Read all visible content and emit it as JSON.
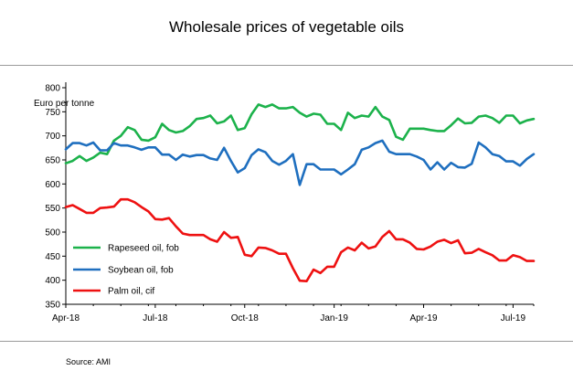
{
  "chart_data": {
    "type": "line",
    "title": "Wholesale prices of vegetable oils",
    "ylabel": "Euro per tonne",
    "xlabel": "",
    "ylim": [
      350,
      800
    ],
    "yticks": [
      350,
      400,
      450,
      500,
      550,
      600,
      650,
      700,
      750,
      800
    ],
    "x_tick_labels": [
      "Apr-18",
      "Jul-18",
      "Oct-18",
      "Jan-19",
      "Apr-19",
      "Jul-19"
    ],
    "grid": false,
    "legend_position": "bottom-left",
    "source": "Source: AMI",
    "series": [
      {
        "name": "Rapeseed oil, fob",
        "color": "#1cb24b",
        "values": [
          643,
          648,
          658,
          648,
          655,
          665,
          662,
          690,
          700,
          718,
          712,
          692,
          690,
          697,
          725,
          712,
          707,
          710,
          720,
          735,
          737,
          742,
          726,
          730,
          742,
          712,
          716,
          745,
          765,
          760,
          765,
          757,
          757,
          760,
          748,
          740,
          746,
          744,
          725,
          725,
          712,
          748,
          737,
          742,
          740,
          760,
          740,
          733,
          698,
          692,
          715,
          715,
          715,
          712,
          710,
          710,
          722,
          736,
          726,
          727,
          740,
          742,
          737,
          727,
          742,
          742,
          726,
          732,
          735
        ]
      },
      {
        "name": "Soybean oil, fob",
        "color": "#1f6fbf",
        "values": [
          672,
          685,
          685,
          680,
          686,
          670,
          670,
          685,
          680,
          680,
          676,
          671,
          676,
          676,
          661,
          661,
          650,
          661,
          657,
          660,
          660,
          653,
          650,
          675,
          648,
          624,
          633,
          660,
          672,
          666,
          648,
          640,
          648,
          662,
          598,
          641,
          641,
          630,
          630,
          630,
          620,
          630,
          641,
          671,
          676,
          685,
          690,
          667,
          662,
          662,
          662,
          657,
          650,
          630,
          645,
          630,
          644,
          635,
          634,
          642,
          686,
          676,
          662,
          658,
          647,
          647,
          638,
          652,
          662
        ]
      },
      {
        "name": "Palm oil, cif",
        "color": "#ee1111",
        "values": [
          552,
          556,
          548,
          540,
          540,
          550,
          551,
          553,
          568,
          568,
          562,
          552,
          543,
          527,
          526,
          529,
          512,
          497,
          494,
          494,
          494,
          485,
          480,
          500,
          488,
          490,
          453,
          450,
          468,
          467,
          462,
          455,
          455,
          425,
          399,
          398,
          422,
          415,
          428,
          428,
          458,
          468,
          462,
          478,
          466,
          470,
          490,
          502,
          485,
          485,
          478,
          465,
          464,
          470,
          480,
          484,
          477,
          483,
          456,
          457,
          465,
          458,
          452,
          441,
          441,
          452,
          448,
          440,
          440
        ]
      }
    ]
  }
}
